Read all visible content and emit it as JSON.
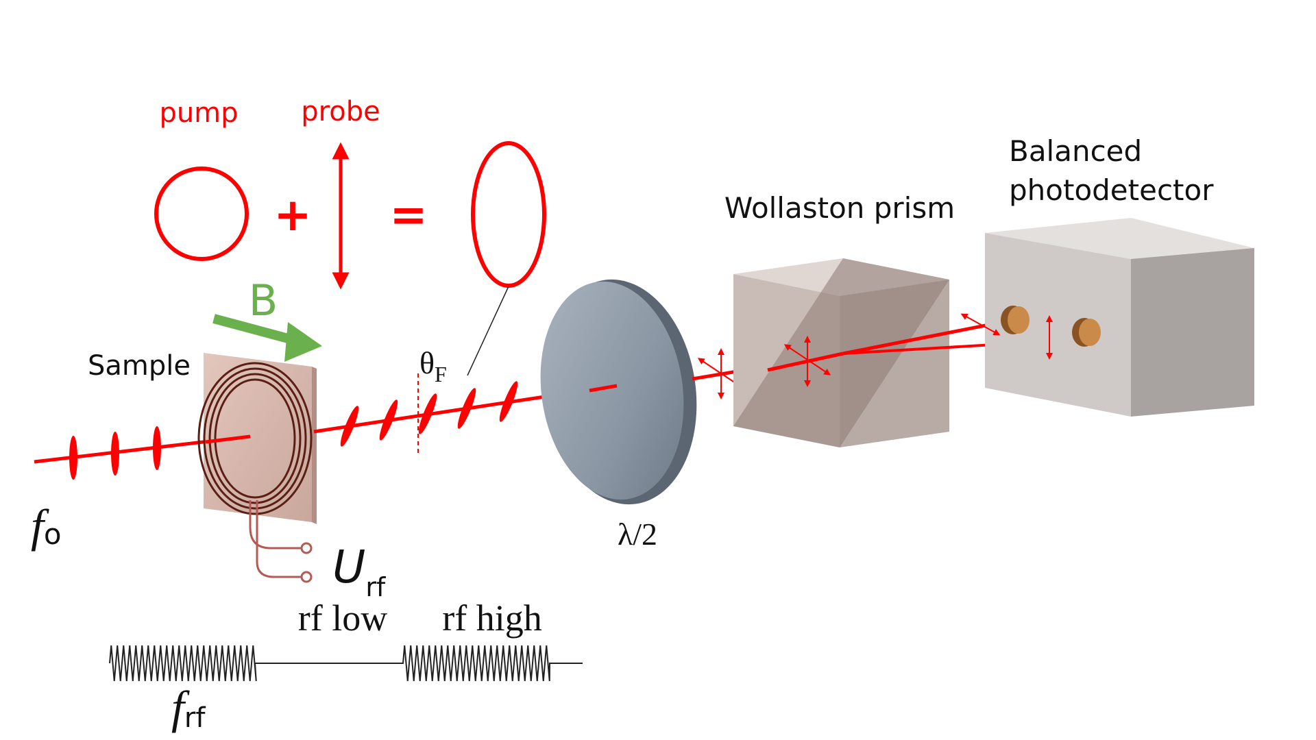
{
  "labels": {
    "pump": "pump",
    "probe": "probe",
    "plus": "+",
    "equals": "=",
    "b_field": "B",
    "sample": "Sample",
    "theta": "θ",
    "theta_sub": "F",
    "waveplate": "λ/2",
    "prism": "Wollaston prism",
    "detector_line1": "Balanced",
    "detector_line2": "photodetector",
    "f_optical": "f",
    "f_optical_sub": "o",
    "u_rf": "U",
    "u_rf_sub": "rf",
    "rf_low": "rf low",
    "rf_high": "rf high",
    "f_rf": "f",
    "f_rf_sub": "rf"
  },
  "colors": {
    "laser": "#ff0000",
    "b_field": "#6ab04c",
    "text": "#111111",
    "coil": "#5a1f14",
    "coil_leads": "#b35a55",
    "sample_face": "#dab8ae",
    "waveplate": "#8f9aa6",
    "prism": "#c9bcb6",
    "detector": "#cfcac7",
    "photodiode": "#c98a4a"
  },
  "icons": {
    "circular": "circle-polarization-icon",
    "linear": "double-arrow-polarization-icon",
    "elliptical": "ellipse-polarization-icon",
    "b_arrow": "arrow-right-icon"
  }
}
